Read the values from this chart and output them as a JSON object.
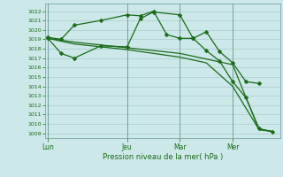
{
  "bg_color": "#cce8e8",
  "grid_color": "#aacccc",
  "line_color": "#1a6b1a",
  "marker_color": "#1a6b1a",
  "xlabel_text": "Pression niveau de la mer( hPa )",
  "xtick_labels": [
    "Lun",
    "Jeu",
    "Mar",
    "Mer"
  ],
  "xtick_positions": [
    0,
    3,
    5,
    7
  ],
  "ylim": [
    1008.5,
    1022.8
  ],
  "xlim": [
    -0.1,
    8.8
  ],
  "yticks": [
    1009,
    1010,
    1011,
    1012,
    1013,
    1014,
    1015,
    1016,
    1017,
    1018,
    1019,
    1020,
    1021,
    1022
  ],
  "series1_x": [
    0,
    0.5,
    1.0,
    2.0,
    3.0,
    3.5,
    4.0,
    4.5,
    5.0,
    5.5,
    6.0,
    6.5,
    7.0,
    7.5,
    8.0
  ],
  "series1_y": [
    1019.2,
    1019.0,
    1020.5,
    1021.0,
    1021.6,
    1021.5,
    1022.0,
    1019.5,
    1019.1,
    1019.1,
    1019.8,
    1017.7,
    1016.5,
    1014.5,
    1014.3
  ],
  "series2_x": [
    0,
    0.5,
    1.0,
    2.0,
    3.0,
    3.5,
    4.0,
    5.0,
    5.5,
    6.0,
    6.5,
    7.0,
    7.5,
    8.0,
    8.5
  ],
  "series2_y": [
    1019.1,
    1017.5,
    1017.0,
    1018.3,
    1018.2,
    1021.2,
    1021.9,
    1021.6,
    1019.1,
    1017.8,
    1016.7,
    1014.5,
    1012.8,
    1009.5,
    1009.2
  ],
  "series3_x": [
    0,
    1,
    2,
    3,
    4,
    5,
    6,
    7,
    8,
    8.5
  ],
  "series3_y": [
    1019.1,
    1018.7,
    1018.4,
    1018.1,
    1017.8,
    1017.5,
    1016.9,
    1016.3,
    1009.4,
    1009.2
  ],
  "series4_x": [
    0,
    1,
    2,
    3,
    4,
    5,
    6,
    7,
    8,
    8.5
  ],
  "series4_y": [
    1019.1,
    1018.5,
    1018.2,
    1017.9,
    1017.5,
    1017.1,
    1016.5,
    1014.0,
    1009.4,
    1009.2
  ]
}
